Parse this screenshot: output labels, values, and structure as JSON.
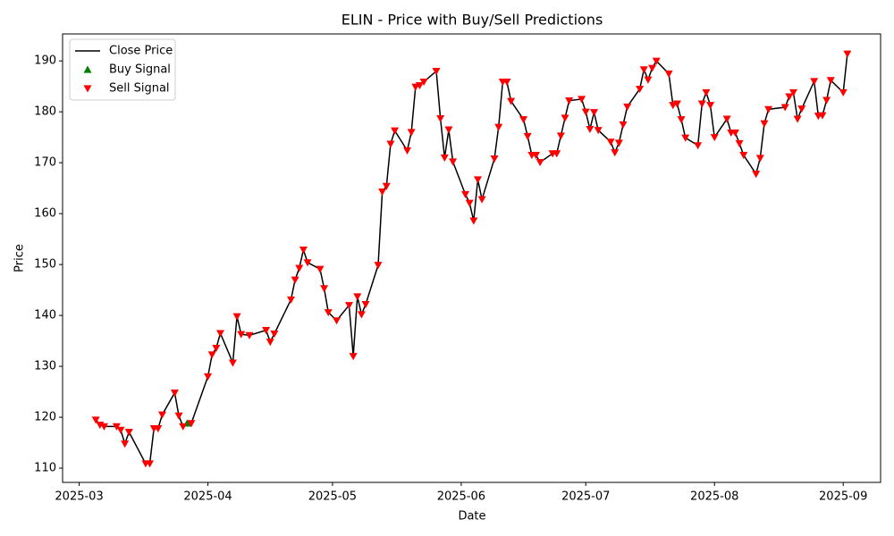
{
  "chart_data": {
    "type": "line",
    "title": "ELIN - Price with Buy/Sell Predictions",
    "x_label": "Date",
    "y_label": "Price",
    "x": [
      "2025-03-05",
      "2025-03-06",
      "2025-03-07",
      "2025-03-10",
      "2025-03-11",
      "2025-03-12",
      "2025-03-13",
      "2025-03-17",
      "2025-03-18",
      "2025-03-19",
      "2025-03-20",
      "2025-03-21",
      "2025-03-24",
      "2025-03-25",
      "2025-03-26",
      "2025-03-27",
      "2025-03-28",
      "2025-04-01",
      "2025-04-02",
      "2025-04-03",
      "2025-04-04",
      "2025-04-07",
      "2025-04-08",
      "2025-04-09",
      "2025-04-11",
      "2025-04-15",
      "2025-04-16",
      "2025-04-17",
      "2025-04-21",
      "2025-04-22",
      "2025-04-23",
      "2025-04-24",
      "2025-04-25",
      "2025-04-28",
      "2025-04-29",
      "2025-04-30",
      "2025-05-02",
      "2025-05-05",
      "2025-05-06",
      "2025-05-07",
      "2025-05-08",
      "2025-05-09",
      "2025-05-12",
      "2025-05-13",
      "2025-05-14",
      "2025-05-15",
      "2025-05-16",
      "2025-05-19",
      "2025-05-20",
      "2025-05-21",
      "2025-05-22",
      "2025-05-23",
      "2025-05-26",
      "2025-05-27",
      "2025-05-28",
      "2025-05-29",
      "2025-05-30",
      "2025-06-02",
      "2025-06-03",
      "2025-06-04",
      "2025-06-05",
      "2025-06-06",
      "2025-06-09",
      "2025-06-10",
      "2025-06-11",
      "2025-06-12",
      "2025-06-13",
      "2025-06-16",
      "2025-06-17",
      "2025-06-18",
      "2025-06-19",
      "2025-06-20",
      "2025-06-23",
      "2025-06-24",
      "2025-06-25",
      "2025-06-26",
      "2025-06-27",
      "2025-06-30",
      "2025-07-01",
      "2025-07-02",
      "2025-07-03",
      "2025-07-04",
      "2025-07-07",
      "2025-07-08",
      "2025-07-09",
      "2025-07-10",
      "2025-07-11",
      "2025-07-14",
      "2025-07-15",
      "2025-07-16",
      "2025-07-17",
      "2025-07-18",
      "2025-07-21",
      "2025-07-22",
      "2025-07-23",
      "2025-07-24",
      "2025-07-25",
      "2025-07-28",
      "2025-07-29",
      "2025-07-30",
      "2025-07-31",
      "2025-08-01",
      "2025-08-04",
      "2025-08-05",
      "2025-08-06",
      "2025-08-07",
      "2025-08-08",
      "2025-08-11",
      "2025-08-12",
      "2025-08-13",
      "2025-08-14",
      "2025-08-18",
      "2025-08-19",
      "2025-08-20",
      "2025-08-21",
      "2025-08-22",
      "2025-08-25",
      "2025-08-26",
      "2025-08-27",
      "2025-08-28",
      "2025-08-29",
      "2025-09-01",
      "2025-09-02"
    ],
    "series": [
      {
        "name": "Close Price",
        "kind": "line",
        "color": "#000000",
        "values": [
          119.5,
          118.5,
          118.2,
          118.2,
          117.5,
          114.8,
          117.1,
          110.9,
          110.9,
          117.8,
          117.8,
          120.5,
          124.8,
          120.3,
          118.2,
          118.8,
          118.8,
          128,
          132.3,
          133.6,
          136.5,
          130.7,
          139.8,
          136.3,
          136.1,
          137.1,
          134.8,
          136.4,
          143.1,
          147,
          149.3,
          152.9,
          150.4,
          149.1,
          145.3,
          140.6,
          139,
          142,
          132,
          143.7,
          140.2,
          142.2,
          149.9,
          164.3,
          165.4,
          173.7,
          176.3,
          172.4,
          176,
          184.9,
          185.2,
          185.9,
          188,
          178.7,
          171,
          176.5,
          170.2,
          163.8,
          162.1,
          158.6,
          166.7,
          162.8,
          170.8,
          177,
          185.9,
          185.9,
          182.1,
          178.5,
          175.2,
          171.5,
          171.5,
          170.1,
          171.8,
          171.8,
          175.3,
          178.8,
          182.2,
          182.5,
          180,
          176.6,
          179.9,
          176.4,
          174.1,
          172,
          173.9,
          177.5,
          181,
          184.5,
          188.3,
          186.3,
          188.6,
          190,
          187.5,
          181.3,
          181.6,
          178.5,
          174.9,
          173.4,
          181.6,
          183.8,
          181.3,
          175,
          178.6,
          175.9,
          175.9,
          173.8,
          171.5,
          167.8,
          170.9,
          177.7,
          180.5,
          180.9,
          183,
          183.8,
          178.6,
          180.6,
          186,
          179.2,
          179.3,
          182.3,
          186.2,
          183.8,
          191.4
        ]
      },
      {
        "name": "Buy Signal",
        "kind": "up",
        "color": "#008000",
        "x": [
          "2025-03-27"
        ],
        "values": [
          118.8
        ]
      },
      {
        "name": "Sell Signal",
        "kind": "down",
        "color": "#ff0000",
        "values": [
          119.5,
          118.5,
          118.2,
          118.2,
          117.5,
          114.8,
          117.1,
          110.9,
          110.9,
          117.8,
          117.8,
          120.5,
          124.8,
          120.3,
          118.2,
          null,
          118.8,
          128,
          132.3,
          133.6,
          136.5,
          130.7,
          139.8,
          136.3,
          136.1,
          137.1,
          134.8,
          136.4,
          143.1,
          147,
          149.3,
          152.9,
          150.4,
          149.1,
          145.3,
          140.6,
          139,
          142,
          132,
          143.7,
          140.2,
          142.2,
          149.9,
          164.3,
          165.4,
          173.7,
          176.3,
          172.4,
          176,
          184.9,
          185.2,
          185.9,
          188,
          178.7,
          171,
          176.5,
          170.2,
          163.8,
          162.1,
          158.6,
          166.7,
          162.8,
          170.8,
          177,
          185.9,
          185.9,
          182.1,
          178.5,
          175.2,
          171.5,
          171.5,
          170.1,
          171.8,
          171.8,
          175.3,
          178.8,
          182.2,
          182.5,
          180,
          176.6,
          179.9,
          176.4,
          174.1,
          172,
          173.9,
          177.5,
          181,
          184.5,
          188.3,
          186.3,
          188.6,
          190,
          187.5,
          181.3,
          181.6,
          178.5,
          174.9,
          173.4,
          181.6,
          183.8,
          181.3,
          175,
          178.6,
          175.9,
          175.9,
          173.8,
          171.5,
          167.8,
          170.9,
          177.7,
          180.5,
          180.9,
          183,
          183.8,
          178.6,
          180.6,
          186,
          179.2,
          179.3,
          182.3,
          186.2,
          183.8,
          191.4
        ]
      }
    ],
    "xlim": [
      "2025-02-25",
      "2025-09-10"
    ],
    "xticks": [
      {
        "value": "2025-03-01",
        "label": "2025-03"
      },
      {
        "value": "2025-04-01",
        "label": "2025-04"
      },
      {
        "value": "2025-05-01",
        "label": "2025-05"
      },
      {
        "value": "2025-06-01",
        "label": "2025-06"
      },
      {
        "value": "2025-07-01",
        "label": "2025-07"
      },
      {
        "value": "2025-08-01",
        "label": "2025-08"
      },
      {
        "value": "2025-09-01",
        "label": "2025-09"
      }
    ],
    "ylim": [
      107.2,
      195.3
    ],
    "yticks": [
      110,
      120,
      130,
      140,
      150,
      160,
      170,
      180,
      190
    ],
    "legend": "upper-left"
  }
}
